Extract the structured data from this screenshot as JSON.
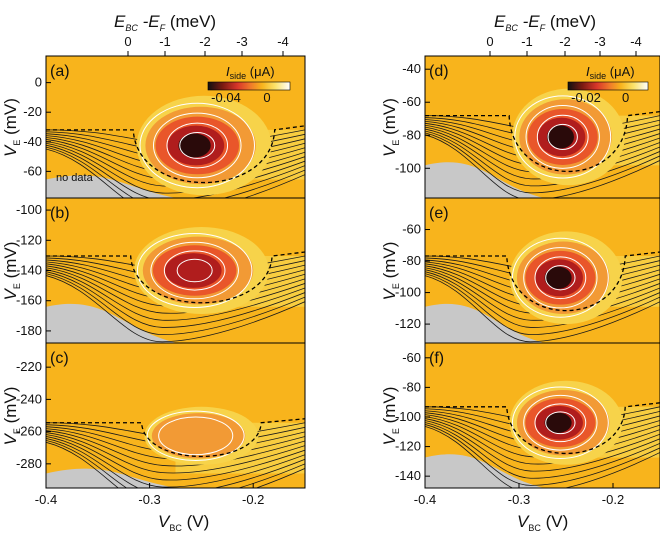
{
  "colors": {
    "background": "#f8b41c",
    "gray_region": "#c8c8c8",
    "contour_dark": "#1a1a1a",
    "contour_light": "#ffffff",
    "well_outer": "#f7d34a",
    "well_mid": "#e9562a",
    "well_inner": "#b01d1d",
    "well_core": "#2a0a0a",
    "colorbar_gradient": [
      "#111111",
      "#7a1a12",
      "#d8362a",
      "#f07a2a",
      "#f8b41c",
      "#fbe36a",
      "#ffffff"
    ]
  },
  "labels": {
    "top_axis_left": {
      "main": "E",
      "sub1": "BC",
      "mid": " -E",
      "sub2": "F",
      "tail": " (meV)"
    },
    "top_axis_right": {
      "main": "E",
      "sub1": "BC",
      "mid": " -E",
      "sub2": "F",
      "tail": " (meV)"
    },
    "bottom_axis_left": {
      "main": "V",
      "sub": "BC",
      "tail": " (V)"
    },
    "bottom_axis_right": {
      "main": "V",
      "sub": "BC",
      "tail": " (V)"
    },
    "y_axis": {
      "main": "V",
      "sub": "E",
      "tail": " (mV)"
    },
    "no_data": "no data"
  },
  "colorbars": [
    {
      "title_main": "I",
      "title_sub": "side",
      "title_unit": " (μA)",
      "ticks": [
        "-0.04",
        "0"
      ]
    },
    {
      "title_main": "I",
      "title_sub": "side",
      "title_unit": " (μA)",
      "ticks": [
        "-0.02",
        "0"
      ]
    }
  ],
  "chart_data": [
    {
      "panel": "(a)",
      "type": "heatmap",
      "x": {
        "range": [
          -0.4,
          -0.15
        ]
      },
      "y": {
        "range": [
          -78,
          18
        ],
        "ticks": [
          "0",
          "-20",
          "-40",
          "-60"
        ]
      },
      "feature": "current well centered near V_BC = -0.26 V, V_E = -45 mV; dashed boundary at about -35 mV"
    },
    {
      "panel": "(b)",
      "type": "heatmap",
      "x": {
        "range": [
          -0.4,
          -0.15
        ]
      },
      "y": {
        "range": [
          -188,
          -92
        ],
        "ticks": [
          "-100",
          "-120",
          "-140",
          "-160",
          "-180"
        ]
      },
      "feature": "current well centered near V_BC = -0.26 V, V_E = -142 mV; dashed boundary at about -132 mV"
    },
    {
      "panel": "(c)",
      "type": "heatmap",
      "x": {
        "range": [
          -0.4,
          -0.15
        ],
        "ticks": [
          "-0.4",
          "-0.3",
          "-0.2"
        ]
      },
      "y": {
        "range": [
          -295,
          -205
        ],
        "ticks": [
          "-220",
          "-240",
          "-260",
          "-280"
        ]
      },
      "feature": "weak current well near V_BC = -0.26 V, V_E = -262 mV; dashed boundary at about -255 mV"
    },
    {
      "panel": "(d)",
      "type": "heatmap",
      "x": {
        "range": [
          -0.4,
          -0.15
        ]
      },
      "y": {
        "range": [
          -118,
          -32
        ],
        "ticks": [
          "-40",
          "-60",
          "-80",
          "-100"
        ]
      },
      "feature": "current well centered near V_BC = -0.26 V, V_E = -80 mV; dashed boundary at about -68 mV"
    },
    {
      "panel": "(e)",
      "type": "heatmap",
      "x": {
        "range": [
          -0.4,
          -0.15
        ]
      },
      "y": {
        "range": [
          -132,
          -40
        ],
        "ticks": [
          "-40",
          "-60",
          "-80",
          "-100",
          "-120"
        ]
      },
      "feature": "current well centered near V_BC = -0.26 V, V_E = -95 mV; dashed boundary at about -78 mV"
    },
    {
      "panel": "(f)",
      "type": "heatmap",
      "x": {
        "range": [
          -0.4,
          -0.15
        ],
        "ticks": [
          "-0.4",
          "-0.3",
          "-0.2"
        ]
      },
      "y": {
        "range": [
          -148,
          -50
        ],
        "ticks": [
          "-60",
          "-80",
          "-100",
          "-120",
          "-140"
        ]
      },
      "feature": "current well centered near V_BC = -0.26 V, V_E = -104 mV; dashed boundary at about -90 mV"
    }
  ],
  "top_axis_ticks": [
    "0",
    "-1",
    "-2",
    "-3",
    "-4"
  ]
}
